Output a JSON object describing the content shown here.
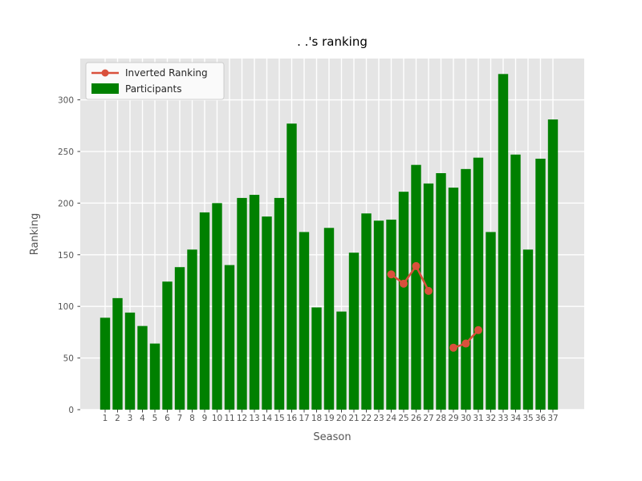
{
  "figure": {
    "title": ". .'s ranking",
    "xlabel": "Season",
    "ylabel": "Ranking"
  },
  "legend": {
    "position": "upper left",
    "items": [
      {
        "label": "Inverted Ranking",
        "type": "line-marker",
        "color": "#d9503c"
      },
      {
        "label": "Participants",
        "type": "patch",
        "color": "#008000"
      }
    ]
  },
  "chart_data": {
    "type": "bar",
    "title": ". .'s ranking",
    "xlabel": "Season",
    "ylabel": "Ranking",
    "x": [
      1,
      2,
      3,
      4,
      5,
      6,
      7,
      8,
      9,
      10,
      11,
      12,
      13,
      14,
      15,
      16,
      17,
      18,
      19,
      20,
      21,
      22,
      23,
      24,
      25,
      26,
      27,
      28,
      29,
      30,
      31,
      32,
      33,
      34,
      35,
      36,
      37
    ],
    "series": [
      {
        "name": "Participants",
        "type": "bar",
        "color": "#008000",
        "values": [
          89,
          108,
          94,
          81,
          64,
          124,
          138,
          155,
          191,
          200,
          140,
          205,
          208,
          187,
          205,
          277,
          172,
          99,
          176,
          95,
          152,
          190,
          183,
          184,
          211,
          237,
          219,
          229,
          215,
          233,
          244,
          172,
          325,
          247,
          155,
          243,
          281
        ]
      },
      {
        "name": "Inverted Ranking",
        "type": "line",
        "color": "#d9503c",
        "values": [
          null,
          null,
          null,
          null,
          null,
          null,
          null,
          null,
          null,
          null,
          null,
          null,
          null,
          null,
          null,
          null,
          null,
          null,
          null,
          null,
          null,
          null,
          null,
          131,
          122,
          139,
          115,
          null,
          60,
          64,
          77,
          null,
          null,
          null,
          null,
          null,
          null
        ]
      }
    ],
    "y_ticks": [
      0,
      50,
      100,
      150,
      200,
      250,
      300
    ],
    "ylim": [
      0,
      340
    ],
    "grid": true,
    "legend_position": "upper left",
    "plot_bg": "#e5e5e5",
    "grid_color": "#ffffff",
    "tick_color": "#444444",
    "tick_label_color": "#555555"
  }
}
